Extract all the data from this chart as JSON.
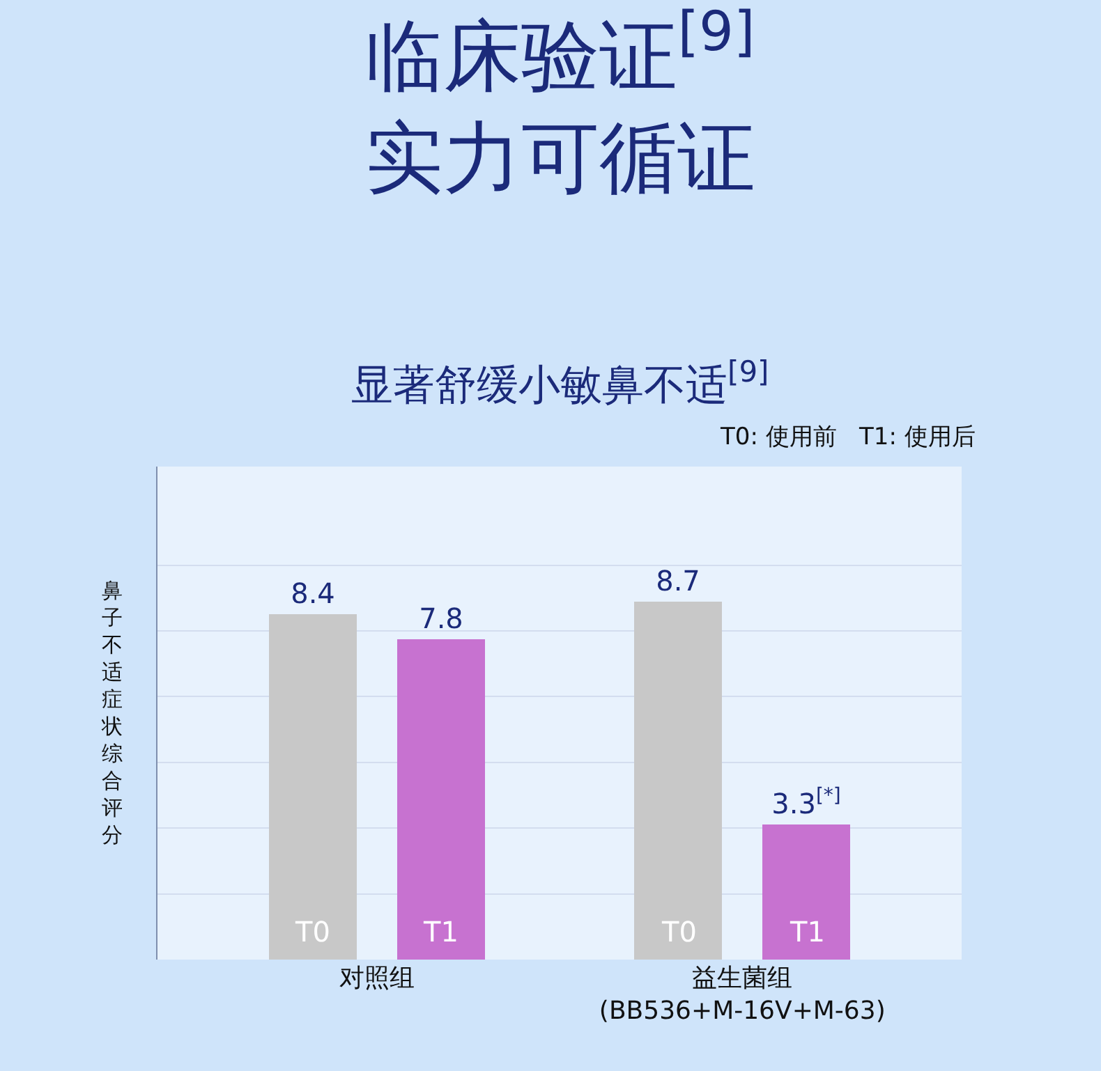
{
  "chart_data": {
    "type": "bar",
    "title": "临床验证$^{[9]}$\n实力可循证",
    "subtitle": "显著舒缓小敏鼻不适$^{[9]}$",
    "ylabel": "鼻子不适症状综合评分",
    "categories": [
      "对照组",
      "益生菌组\n(BB536+M-16V+M-63)"
    ],
    "series": [
      {
        "name": "T0",
        "color": "#c8c8c8",
        "values": [
          8.4,
          8.7
        ],
        "value_labels": [
          "8.4",
          "8.7"
        ]
      },
      {
        "name": "T1",
        "color": "#c772d0",
        "values": [
          7.8,
          3.3
        ],
        "value_labels": [
          "7.8",
          "3.3$^{[*]}$"
        ]
      }
    ],
    "annotations": [
      "T0: 使用前   T1: 使用后"
    ],
    "ylim": [
      0,
      12
    ],
    "yticks": [
      {
        "value": 1.6,
        "label": null
      },
      {
        "value": 3.2,
        "label": null
      },
      {
        "value": 4.8,
        "label": null
      },
      {
        "value": 6.4,
        "label": null
      },
      {
        "value": 8.0,
        "label": null
      },
      {
        "value": 9.6,
        "label": null
      }
    ],
    "tick_labels": "x",
    "grid": "y",
    "legend": false
  }
}
